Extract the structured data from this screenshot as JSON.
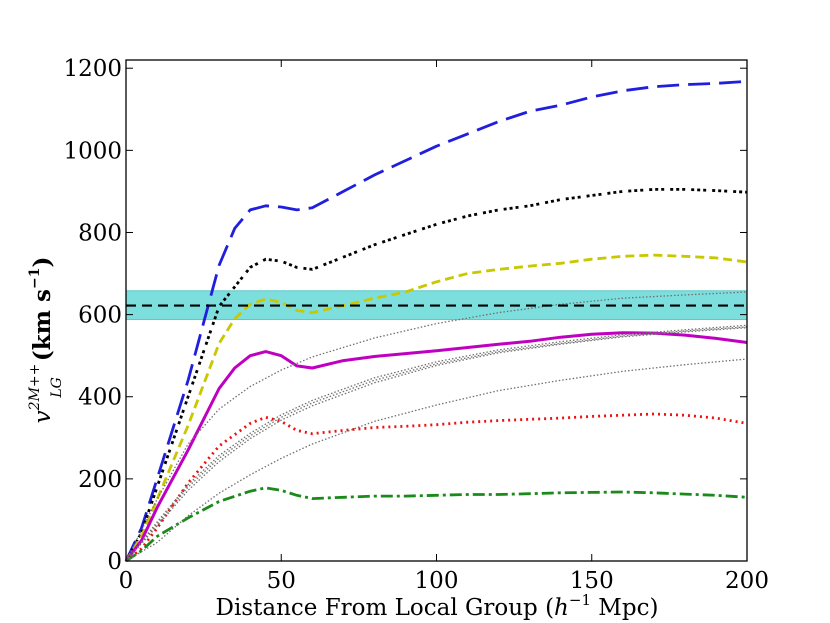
{
  "chart_data": {
    "type": "line",
    "title": "",
    "xlabel": "Distance From Local Group (",
    "xlabel_math": "h",
    "xlabel_exp": "−1",
    "xlabel_unit": " Mpc)",
    "ylabel_math": "v",
    "ylabel_sup": "2M++",
    "ylabel_sub": "LG",
    "ylabel_unit": "(km s",
    "ylabel_unit_exp": "−1",
    "ylabel_unit_close": ")",
    "xlim": [
      0,
      200
    ],
    "ylim": [
      0,
      1220
    ],
    "xticks": [
      0,
      50,
      100,
      150,
      200
    ],
    "yticks": [
      0,
      200,
      400,
      600,
      800,
      1000,
      1200
    ],
    "band": {
      "y_low": 588,
      "y_high": 658,
      "color": "#7ddede"
    },
    "reference_line": {
      "y": 622,
      "color": "#000000",
      "style": "dashed"
    },
    "series": [
      {
        "name": "blue",
        "color": "#1f1fdd",
        "style": "longdash",
        "x": [
          0,
          5,
          10,
          20,
          25,
          30,
          35,
          40,
          45,
          50,
          55,
          60,
          70,
          80,
          90,
          100,
          110,
          120,
          130,
          140,
          150,
          160,
          170,
          180,
          190,
          200
        ],
        "y": [
          0,
          80,
          200,
          440,
          580,
          720,
          810,
          855,
          865,
          862,
          855,
          860,
          900,
          940,
          975,
          1010,
          1040,
          1070,
          1095,
          1110,
          1130,
          1145,
          1155,
          1160,
          1163,
          1168
        ]
      },
      {
        "name": "black",
        "color": "#000000",
        "style": "dashdot",
        "x": [
          0,
          5,
          10,
          20,
          30,
          40,
          45,
          50,
          55,
          60,
          70,
          80,
          90,
          100,
          110,
          120,
          130,
          140,
          150,
          160,
          170,
          180,
          190,
          200
        ],
        "y": [
          0,
          70,
          180,
          400,
          620,
          715,
          735,
          730,
          715,
          710,
          740,
          770,
          795,
          820,
          840,
          855,
          865,
          880,
          890,
          900,
          905,
          905,
          902,
          898
        ]
      },
      {
        "name": "yellow",
        "color": "#c8c800",
        "style": "dashed",
        "x": [
          0,
          5,
          10,
          20,
          30,
          35,
          40,
          45,
          50,
          55,
          60,
          70,
          80,
          90,
          100,
          110,
          120,
          130,
          140,
          150,
          160,
          170,
          180,
          190,
          200
        ],
        "y": [
          0,
          60,
          150,
          330,
          530,
          590,
          625,
          638,
          630,
          610,
          605,
          622,
          640,
          655,
          680,
          700,
          710,
          718,
          725,
          735,
          742,
          745,
          742,
          738,
          728
        ]
      },
      {
        "name": "magenta",
        "color": "#c000c0",
        "style": "solid",
        "x": [
          0,
          5,
          10,
          20,
          30,
          35,
          40,
          45,
          50,
          55,
          60,
          70,
          80,
          90,
          100,
          110,
          120,
          130,
          140,
          150,
          160,
          170,
          180,
          190,
          200
        ],
        "y": [
          0,
          50,
          130,
          270,
          420,
          470,
          500,
          510,
          500,
          475,
          470,
          488,
          498,
          505,
          512,
          520,
          528,
          535,
          545,
          552,
          556,
          555,
          550,
          542,
          532
        ]
      },
      {
        "name": "red",
        "color": "#ee1111",
        "style": "dotted",
        "x": [
          0,
          5,
          10,
          20,
          30,
          40,
          45,
          50,
          55,
          60,
          70,
          80,
          90,
          100,
          110,
          120,
          130,
          140,
          150,
          160,
          170,
          180,
          190,
          200
        ],
        "y": [
          0,
          30,
          80,
          190,
          280,
          335,
          350,
          340,
          318,
          310,
          318,
          325,
          328,
          332,
          338,
          342,
          345,
          348,
          352,
          355,
          358,
          355,
          348,
          335
        ]
      },
      {
        "name": "green",
        "color": "#1a8a1a",
        "style": "dashdot",
        "x": [
          0,
          5,
          10,
          20,
          30,
          40,
          45,
          50,
          55,
          60,
          70,
          80,
          90,
          100,
          110,
          120,
          130,
          140,
          150,
          160,
          170,
          180,
          190,
          200
        ],
        "y": [
          0,
          25,
          60,
          105,
          145,
          170,
          178,
          172,
          160,
          152,
          155,
          158,
          158,
          160,
          162,
          162,
          164,
          166,
          167,
          168,
          166,
          163,
          160,
          155
        ]
      },
      {
        "name": "grey-upper",
        "color": "#707070",
        "style": "dotted",
        "x": [
          0,
          10,
          20,
          30,
          40,
          50,
          60,
          80,
          100,
          120,
          140,
          160,
          180,
          200
        ],
        "y": [
          0,
          150,
          285,
          370,
          425,
          465,
          497,
          543,
          578,
          605,
          625,
          640,
          648,
          655
        ]
      },
      {
        "name": "grey-mid-a",
        "color": "#707070",
        "style": "dotted",
        "x": [
          0,
          10,
          20,
          30,
          40,
          50,
          60,
          80,
          100,
          120,
          140,
          160,
          180,
          200
        ],
        "y": [
          0,
          90,
          180,
          250,
          305,
          350,
          385,
          440,
          480,
          510,
          530,
          548,
          560,
          570
        ]
      },
      {
        "name": "grey-mid-b",
        "color": "#707070",
        "style": "dotted",
        "x": [
          0,
          10,
          20,
          30,
          40,
          50,
          60,
          80,
          100,
          120,
          140,
          160,
          180,
          200
        ],
        "y": [
          0,
          85,
          172,
          242,
          298,
          343,
          378,
          434,
          476,
          507,
          528,
          546,
          558,
          568
        ]
      },
      {
        "name": "grey-mid-c",
        "color": "#707070",
        "style": "dotted",
        "x": [
          0,
          10,
          20,
          30,
          40,
          50,
          60,
          80,
          100,
          120,
          140,
          160,
          180,
          200
        ],
        "y": [
          0,
          95,
          186,
          257,
          311,
          356,
          391,
          446,
          485,
          514,
          534,
          551,
          563,
          574
        ]
      },
      {
        "name": "grey-lower",
        "color": "#707070",
        "style": "dotted",
        "x": [
          0,
          10,
          20,
          30,
          40,
          50,
          60,
          80,
          100,
          120,
          140,
          160,
          180,
          200
        ],
        "y": [
          0,
          45,
          110,
          165,
          210,
          250,
          285,
          340,
          380,
          415,
          440,
          462,
          478,
          492
        ]
      }
    ]
  }
}
